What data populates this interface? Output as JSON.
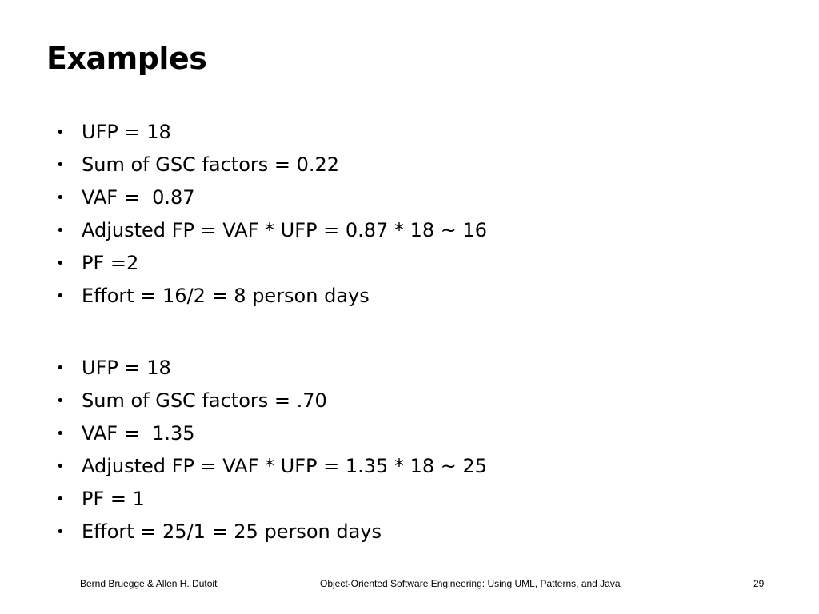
{
  "slide": {
    "title": "Examples",
    "bullet_symbol": "•",
    "example1": [
      "UFP = 18",
      "Sum of GSC factors = 0.22",
      "VAF =  0.87",
      "Adjusted FP = VAF * UFP = 0.87 * 18 ~ 16",
      "PF =2",
      "Effort = 16/2 = 8 person days"
    ],
    "example2": [
      "UFP = 18",
      "Sum of GSC factors = .70",
      "VAF =  1.35",
      "Adjusted FP = VAF * UFP = 1.35 * 18 ~ 25",
      "PF = 1",
      "Effort = 25/1 = 25 person days"
    ]
  },
  "footer": {
    "authors": "Bernd Bruegge & Allen H. Dutoit",
    "book_title": "Object-Oriented Software Engineering: Using UML, Patterns, and Java",
    "page_number": "29"
  }
}
